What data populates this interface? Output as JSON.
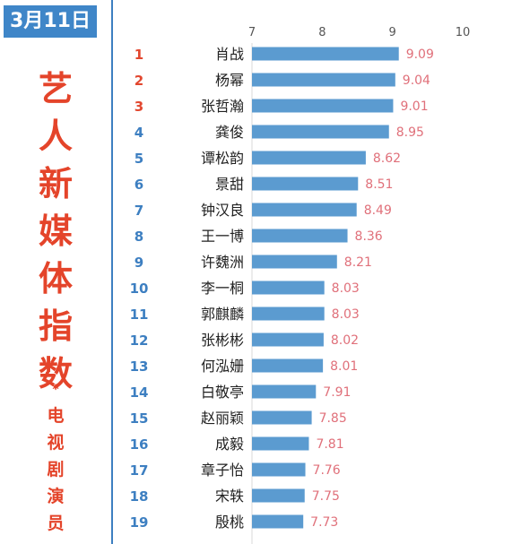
{
  "date_badge": "3月11日",
  "title_chars": [
    "艺",
    "人",
    "新",
    "媒",
    "体",
    "指",
    "数"
  ],
  "separator": "*",
  "subtitle_chars": [
    "电",
    "视",
    "剧",
    "演",
    "员"
  ],
  "colors": {
    "bar": "#5b9bd0",
    "value_text": "#e0707a",
    "rank_text": "#3d7fc1",
    "rank_top3_text": "#e2472f",
    "title_red": "#e4442a",
    "badge_blue": "#3f86c8"
  },
  "chart_data": {
    "type": "bar",
    "orientation": "horizontal",
    "xlim": [
      7,
      10
    ],
    "x_ticks": [
      "7",
      "8",
      "9",
      "10"
    ],
    "ranks": [
      "1",
      "2",
      "3",
      "4",
      "5",
      "6",
      "7",
      "8",
      "9",
      "10",
      "11",
      "12",
      "13",
      "14",
      "15",
      "16",
      "17",
      "18",
      "19"
    ],
    "categories": [
      "肖战",
      "杨幂",
      "张哲瀚",
      "龚俊",
      "谭松韵",
      "景甜",
      "钟汉良",
      "王一博",
      "许魏洲",
      "李一桐",
      "郭麒麟",
      "张彬彬",
      "何泓姗",
      "白敬亭",
      "赵丽颖",
      "成毅",
      "章子怡",
      "宋轶",
      "殷桃"
    ],
    "values": [
      9.09,
      9.04,
      9.01,
      8.95,
      8.62,
      8.51,
      8.49,
      8.36,
      8.21,
      8.03,
      8.03,
      8.02,
      8.01,
      7.91,
      7.85,
      7.81,
      7.76,
      7.75,
      7.73
    ],
    "value_labels": [
      "9.09",
      "9.04",
      "9.01",
      "8.95",
      "8.62",
      "8.51",
      "8.49",
      "8.36",
      "8.21",
      "8.03",
      "8.03",
      "8.02",
      "8.01",
      "7.91",
      "7.85",
      "7.81",
      "7.76",
      "7.75",
      "7.73"
    ]
  }
}
